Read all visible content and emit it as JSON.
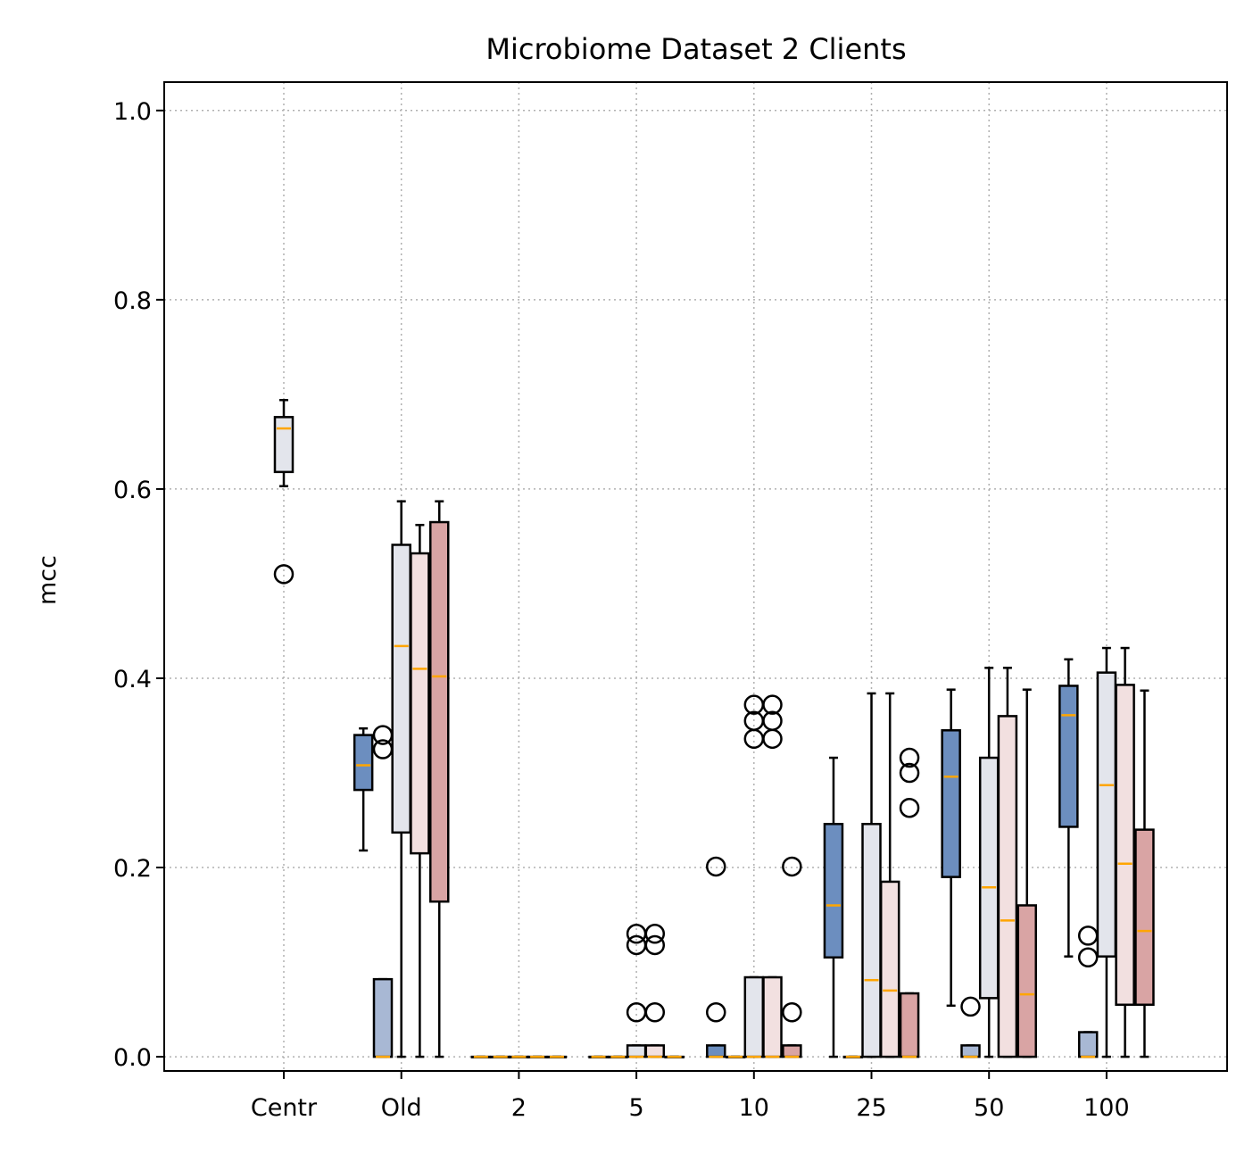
{
  "chart_data": {
    "type": "box",
    "title": "Microbiome Dataset 2 Clients",
    "xlabel": "",
    "ylabel": "mcc",
    "categories": [
      "Centr",
      "Old",
      "2",
      "5",
      "10",
      "25",
      "50",
      "100"
    ],
    "ylim": [
      -0.015,
      1.03
    ],
    "yticks": [
      "0.0",
      "0.2",
      "0.4",
      "0.6",
      "0.8",
      "1.0"
    ],
    "grid": true,
    "colors": {
      "blue": "#6c8ebf",
      "light_blue": "#a8b8d4",
      "gray": "#e3e5ec",
      "pink": "#f2e0e0",
      "rose": "#d9a4a4",
      "median": "#ffa500"
    },
    "boxes": [
      {
        "category": "Centr",
        "color": "gray",
        "offset": 0.0,
        "q1": 0.618,
        "median": 0.664,
        "q3": 0.676,
        "whislo": 0.603,
        "whishi": 0.694,
        "fliers": [
          0.51
        ]
      },
      {
        "category": "Old",
        "color": "blue",
        "offset": -0.37,
        "q1": 0.282,
        "median": 0.308,
        "q3": 0.34,
        "whislo": 0.218,
        "whishi": 0.347,
        "fliers": []
      },
      {
        "category": "Old",
        "color": "light_blue",
        "offset": -0.18,
        "q1": 0.0,
        "median": 0.0,
        "q3": 0.082,
        "whislo": 0.0,
        "whishi": 0.082,
        "fliers": [
          0.325,
          0.34
        ]
      },
      {
        "category": "Old",
        "color": "gray",
        "offset": 0.0,
        "q1": 0.237,
        "median": 0.434,
        "q3": 0.541,
        "whislo": 0.0,
        "whishi": 0.587,
        "fliers": []
      },
      {
        "category": "Old",
        "color": "pink",
        "offset": 0.18,
        "q1": 0.215,
        "median": 0.41,
        "q3": 0.532,
        "whislo": 0.0,
        "whishi": 0.562,
        "fliers": []
      },
      {
        "category": "Old",
        "color": "rose",
        "offset": 0.37,
        "q1": 0.164,
        "median": 0.402,
        "q3": 0.565,
        "whislo": 0.0,
        "whishi": 0.587,
        "fliers": []
      },
      {
        "category": "2",
        "color": "blue",
        "offset": -0.37,
        "q1": 0.0,
        "median": 0.0,
        "q3": 0.0,
        "whislo": 0.0,
        "whishi": 0.0,
        "fliers": []
      },
      {
        "category": "2",
        "color": "light_blue",
        "offset": -0.18,
        "q1": 0.0,
        "median": 0.0,
        "q3": 0.0,
        "whislo": 0.0,
        "whishi": 0.0,
        "fliers": []
      },
      {
        "category": "2",
        "color": "gray",
        "offset": 0.0,
        "q1": 0.0,
        "median": 0.0,
        "q3": 0.0,
        "whislo": 0.0,
        "whishi": 0.0,
        "fliers": []
      },
      {
        "category": "2",
        "color": "pink",
        "offset": 0.18,
        "q1": 0.0,
        "median": 0.0,
        "q3": 0.0,
        "whislo": 0.0,
        "whishi": 0.0,
        "fliers": []
      },
      {
        "category": "2",
        "color": "rose",
        "offset": 0.37,
        "q1": 0.0,
        "median": 0.0,
        "q3": 0.0,
        "whislo": 0.0,
        "whishi": 0.0,
        "fliers": []
      },
      {
        "category": "5",
        "color": "blue",
        "offset": -0.37,
        "q1": 0.0,
        "median": 0.0,
        "q3": 0.0,
        "whislo": 0.0,
        "whishi": 0.0,
        "fliers": []
      },
      {
        "category": "5",
        "color": "light_blue",
        "offset": -0.18,
        "q1": 0.0,
        "median": 0.0,
        "q3": 0.0,
        "whislo": 0.0,
        "whishi": 0.0,
        "fliers": []
      },
      {
        "category": "5",
        "color": "gray",
        "offset": 0.0,
        "q1": 0.0,
        "median": 0.0,
        "q3": 0.012,
        "whislo": 0.0,
        "whishi": 0.012,
        "fliers": [
          0.047,
          0.118,
          0.13
        ]
      },
      {
        "category": "5",
        "color": "pink",
        "offset": 0.18,
        "q1": 0.0,
        "median": 0.0,
        "q3": 0.012,
        "whislo": 0.0,
        "whishi": 0.012,
        "fliers": [
          0.047,
          0.118,
          0.13
        ]
      },
      {
        "category": "5",
        "color": "rose",
        "offset": 0.37,
        "q1": 0.0,
        "median": 0.0,
        "q3": 0.0,
        "whislo": 0.0,
        "whishi": 0.0,
        "fliers": []
      },
      {
        "category": "10",
        "color": "blue",
        "offset": -0.37,
        "q1": 0.0,
        "median": 0.0,
        "q3": 0.012,
        "whislo": 0.0,
        "whishi": 0.012,
        "fliers": [
          0.047,
          0.201
        ]
      },
      {
        "category": "10",
        "color": "light_blue",
        "offset": -0.18,
        "q1": 0.0,
        "median": 0.0,
        "q3": 0.0,
        "whislo": 0.0,
        "whishi": 0.0,
        "fliers": []
      },
      {
        "category": "10",
        "color": "gray",
        "offset": 0.0,
        "q1": 0.0,
        "median": 0.0,
        "q3": 0.084,
        "whislo": 0.0,
        "whishi": 0.084,
        "fliers": [
          0.336,
          0.355,
          0.372
        ]
      },
      {
        "category": "10",
        "color": "pink",
        "offset": 0.18,
        "q1": 0.0,
        "median": 0.0,
        "q3": 0.084,
        "whislo": 0.0,
        "whishi": 0.084,
        "fliers": [
          0.336,
          0.355,
          0.372
        ]
      },
      {
        "category": "10",
        "color": "rose",
        "offset": 0.37,
        "q1": 0.0,
        "median": 0.0,
        "q3": 0.012,
        "whislo": 0.0,
        "whishi": 0.012,
        "fliers": [
          0.047,
          0.201
        ]
      },
      {
        "category": "25",
        "color": "blue",
        "offset": -0.37,
        "q1": 0.105,
        "median": 0.16,
        "q3": 0.246,
        "whislo": 0.0,
        "whishi": 0.316,
        "fliers": []
      },
      {
        "category": "25",
        "color": "light_blue",
        "offset": -0.18,
        "q1": 0.0,
        "median": 0.0,
        "q3": 0.0,
        "whislo": 0.0,
        "whishi": 0.0,
        "fliers": []
      },
      {
        "category": "25",
        "color": "gray",
        "offset": 0.0,
        "q1": 0.0,
        "median": 0.081,
        "q3": 0.246,
        "whislo": 0.0,
        "whishi": 0.384,
        "fliers": []
      },
      {
        "category": "25",
        "color": "pink",
        "offset": 0.18,
        "q1": 0.0,
        "median": 0.07,
        "q3": 0.185,
        "whislo": 0.0,
        "whishi": 0.384,
        "fliers": []
      },
      {
        "category": "25",
        "color": "rose",
        "offset": 0.37,
        "q1": 0.0,
        "median": 0.0,
        "q3": 0.067,
        "whislo": 0.0,
        "whishi": 0.067,
        "fliers": [
          0.263,
          0.3,
          0.316
        ]
      },
      {
        "category": "50",
        "color": "blue",
        "offset": -0.37,
        "q1": 0.19,
        "median": 0.296,
        "q3": 0.345,
        "whislo": 0.054,
        "whishi": 0.388,
        "fliers": []
      },
      {
        "category": "50",
        "color": "light_blue",
        "offset": -0.18,
        "q1": 0.0,
        "median": 0.0,
        "q3": 0.012,
        "whislo": 0.0,
        "whishi": 0.012,
        "fliers": [
          0.053
        ]
      },
      {
        "category": "50",
        "color": "gray",
        "offset": 0.0,
        "q1": 0.062,
        "median": 0.179,
        "q3": 0.316,
        "whislo": 0.0,
        "whishi": 0.411,
        "fliers": []
      },
      {
        "category": "50",
        "color": "pink",
        "offset": 0.18,
        "q1": 0.0,
        "median": 0.144,
        "q3": 0.36,
        "whislo": 0.0,
        "whishi": 0.411,
        "fliers": []
      },
      {
        "category": "50",
        "color": "rose",
        "offset": 0.37,
        "q1": 0.0,
        "median": 0.066,
        "q3": 0.16,
        "whislo": 0.0,
        "whishi": 0.388,
        "fliers": []
      },
      {
        "category": "100",
        "color": "blue",
        "offset": -0.37,
        "q1": 0.243,
        "median": 0.361,
        "q3": 0.392,
        "whislo": 0.106,
        "whishi": 0.42,
        "fliers": []
      },
      {
        "category": "100",
        "color": "light_blue",
        "offset": -0.18,
        "q1": 0.0,
        "median": 0.0,
        "q3": 0.026,
        "whislo": 0.0,
        "whishi": 0.026,
        "fliers": [
          0.105,
          0.128
        ]
      },
      {
        "category": "100",
        "color": "gray",
        "offset": 0.0,
        "q1": 0.106,
        "median": 0.287,
        "q3": 0.406,
        "whislo": 0.0,
        "whishi": 0.432,
        "fliers": []
      },
      {
        "category": "100",
        "color": "pink",
        "offset": 0.18,
        "q1": 0.055,
        "median": 0.204,
        "q3": 0.393,
        "whislo": 0.0,
        "whishi": 0.432,
        "fliers": []
      },
      {
        "category": "100",
        "color": "rose",
        "offset": 0.37,
        "q1": 0.055,
        "median": 0.133,
        "q3": 0.24,
        "whislo": 0.0,
        "whishi": 0.387,
        "fliers": []
      }
    ]
  }
}
